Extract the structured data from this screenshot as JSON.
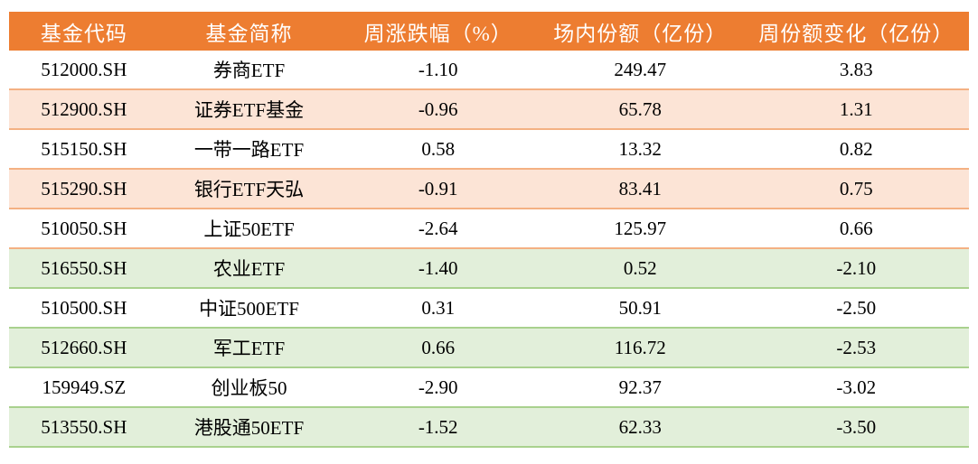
{
  "colors": {
    "header_bg": "#ED7D31",
    "header_text": "#FFFFFF",
    "row_peach_bg": "#FCE4D6",
    "row_green_bg": "#E2EFDA",
    "border_orange": "#F4B183",
    "border_green": "#A9D18E",
    "body_text": "#000000"
  },
  "table": {
    "columns": [
      {
        "key": "code",
        "label": "基金代码"
      },
      {
        "key": "name",
        "label": "基金简称"
      },
      {
        "key": "weekly_change_pct",
        "label": "周涨跌幅（%）"
      },
      {
        "key": "onmarket_shares_yi",
        "label": "场内份额（亿份）"
      },
      {
        "key": "weekly_share_change_yi",
        "label": "周份额变化（亿份）"
      }
    ],
    "rows": [
      {
        "code": "512000.SH",
        "name": "券商ETF",
        "weekly_change_pct": "-1.10",
        "onmarket_shares_yi": "249.47",
        "weekly_share_change_yi": "3.83",
        "band": "white",
        "border_band": "orange"
      },
      {
        "code": "512900.SH",
        "name": "证券ETF基金",
        "weekly_change_pct": "-0.96",
        "onmarket_shares_yi": "65.78",
        "weekly_share_change_yi": "1.31",
        "band": "peach",
        "border_band": "orange"
      },
      {
        "code": "515150.SH",
        "name": "一带一路ETF",
        "weekly_change_pct": "0.58",
        "onmarket_shares_yi": "13.32",
        "weekly_share_change_yi": "0.82",
        "band": "white",
        "border_band": "orange"
      },
      {
        "code": "515290.SH",
        "name": "银行ETF天弘",
        "weekly_change_pct": "-0.91",
        "onmarket_shares_yi": "83.41",
        "weekly_share_change_yi": "0.75",
        "band": "peach",
        "border_band": "orange"
      },
      {
        "code": "510050.SH",
        "name": "上证50ETF",
        "weekly_change_pct": "-2.64",
        "onmarket_shares_yi": "125.97",
        "weekly_share_change_yi": "0.66",
        "band": "white",
        "border_band": "orange"
      },
      {
        "code": "516550.SH",
        "name": "农业ETF",
        "weekly_change_pct": "-1.40",
        "onmarket_shares_yi": "0.52",
        "weekly_share_change_yi": "-2.10",
        "band": "green",
        "border_band": "green"
      },
      {
        "code": "510500.SH",
        "name": "中证500ETF",
        "weekly_change_pct": "0.31",
        "onmarket_shares_yi": "50.91",
        "weekly_share_change_yi": "-2.50",
        "band": "white",
        "border_band": "green"
      },
      {
        "code": "512660.SH",
        "name": "军工ETF",
        "weekly_change_pct": "0.66",
        "onmarket_shares_yi": "116.72",
        "weekly_share_change_yi": "-2.53",
        "band": "green",
        "border_band": "green"
      },
      {
        "code": "159949.SZ",
        "name": "创业板50",
        "weekly_change_pct": "-2.90",
        "onmarket_shares_yi": "92.37",
        "weekly_share_change_yi": "-3.02",
        "band": "white",
        "border_band": "green"
      },
      {
        "code": "513550.SH",
        "name": "港股通50ETF",
        "weekly_change_pct": "-1.52",
        "onmarket_shares_yi": "62.33",
        "weekly_share_change_yi": "-3.50",
        "band": "green",
        "border_band": "green"
      }
    ]
  }
}
